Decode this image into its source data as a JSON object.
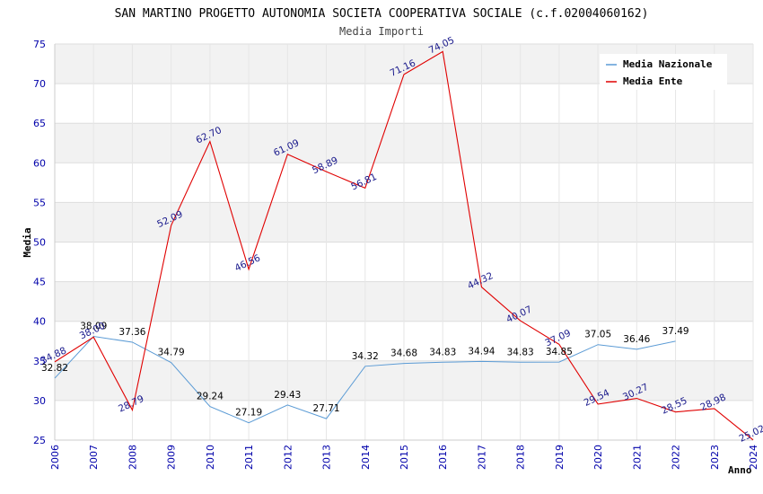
{
  "chart_data": {
    "type": "line",
    "title": "SAN MARTINO PROGETTO AUTONOMIA SOCIETA COOPERATIVA SOCIALE (c.f.02004060162)",
    "subtitle": "Media Importi",
    "xlabel": "Anno",
    "ylabel": "Media",
    "ylim": [
      25,
      75
    ],
    "yticks": [
      "25",
      "30",
      "35",
      "40",
      "45",
      "50",
      "55",
      "60",
      "65",
      "70",
      "75"
    ],
    "x": [
      "2006",
      "2007",
      "2008",
      "2009",
      "2010",
      "2011",
      "2012",
      "2013",
      "2014",
      "2015",
      "2016",
      "2017",
      "2018",
      "2019",
      "2020",
      "2021",
      "2022",
      "2023",
      "2024"
    ],
    "series": [
      {
        "name": "Media Nazionale",
        "color": "#5b9bd5",
        "values": [
          32.82,
          38.09,
          37.36,
          34.79,
          29.24,
          27.19,
          29.43,
          27.71,
          34.32,
          34.68,
          34.83,
          34.94,
          34.83,
          34.85,
          37.05,
          36.46,
          37.49,
          null,
          null
        ],
        "labels": [
          "32.82",
          "38.09",
          "37.36",
          "34.79",
          "29.24",
          "27.19",
          "29.43",
          "27.71",
          "34.32",
          "34.68",
          "34.83",
          "34.94",
          "34.83",
          "34.85",
          "37.05",
          "36.46",
          "37.49",
          null,
          null
        ]
      },
      {
        "name": "Media Ente",
        "color": "#e00000",
        "values": [
          34.88,
          38.0,
          28.79,
          52.09,
          62.7,
          46.56,
          61.09,
          58.89,
          56.81,
          71.16,
          74.05,
          44.32,
          40.07,
          37.09,
          29.54,
          30.27,
          28.55,
          28.98,
          25.02
        ],
        "labels": [
          "34.88",
          "38.00",
          "28.79",
          "52.09",
          "62.70",
          "46.56",
          "61.09",
          "58.89",
          "56.81",
          "71.16",
          "74.05",
          "44.32",
          "40.07",
          "37.09",
          "29.54",
          "30.27",
          "28.55",
          "28.98",
          "25.02"
        ]
      }
    ],
    "grid": true,
    "legend": "top-right"
  }
}
